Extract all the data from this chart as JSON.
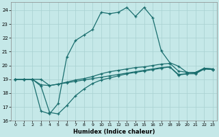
{
  "xlabel": "Humidex (Indice chaleur)",
  "bg_color": "#c5e8e8",
  "grid_color": "#a8d0d0",
  "line_color": "#1a6e6e",
  "xlim": [
    -0.5,
    23.5
  ],
  "ylim": [
    16,
    24.6
  ],
  "yticks": [
    16,
    17,
    18,
    19,
    20,
    21,
    22,
    23,
    24
  ],
  "xticks": [
    0,
    1,
    2,
    3,
    4,
    5,
    6,
    7,
    8,
    9,
    10,
    11,
    12,
    13,
    14,
    15,
    16,
    17,
    18,
    19,
    20,
    21,
    22,
    23
  ],
  "line1_x": [
    0,
    1,
    2,
    3,
    4,
    5,
    6,
    7,
    8,
    9,
    10,
    11,
    12,
    13,
    14,
    15,
    16,
    17,
    18,
    19,
    20,
    21,
    22,
    23
  ],
  "line1_y": [
    19.0,
    19.0,
    19.0,
    18.6,
    18.55,
    18.65,
    18.75,
    18.85,
    18.95,
    19.05,
    19.15,
    19.25,
    19.35,
    19.45,
    19.55,
    19.65,
    19.75,
    19.85,
    19.9,
    19.35,
    19.4,
    19.45,
    19.75,
    19.7
  ],
  "line2_x": [
    0,
    1,
    2,
    3,
    4,
    5,
    6,
    7,
    8,
    9,
    10,
    11,
    12,
    13,
    14,
    15,
    16,
    17,
    18,
    19,
    20,
    21,
    22,
    23
  ],
  "line2_y": [
    19.0,
    19.0,
    19.0,
    19.0,
    18.55,
    18.65,
    18.8,
    18.95,
    19.05,
    19.2,
    19.4,
    19.55,
    19.65,
    19.75,
    19.85,
    19.9,
    20.0,
    20.1,
    20.15,
    19.6,
    19.5,
    19.5,
    19.8,
    19.75
  ],
  "line3_x": [
    0,
    1,
    2,
    3,
    4,
    5,
    6,
    7,
    8,
    9,
    10,
    11,
    12,
    13,
    14,
    15,
    16,
    17,
    18,
    19,
    20,
    21,
    22,
    23
  ],
  "line3_y": [
    19.0,
    19.0,
    19.0,
    16.7,
    16.5,
    17.25,
    20.6,
    21.8,
    22.2,
    22.6,
    23.85,
    23.75,
    23.85,
    24.2,
    23.55,
    24.2,
    23.45,
    21.05,
    20.2,
    19.95,
    19.5,
    19.5,
    19.8,
    19.75
  ],
  "line4_x": [
    0,
    1,
    2,
    3,
    4,
    5,
    6,
    7,
    8,
    9,
    10,
    11,
    12,
    13,
    14,
    15,
    16,
    17,
    18,
    19,
    20,
    21,
    22,
    23
  ],
  "line4_y": [
    19.0,
    19.0,
    19.0,
    18.5,
    16.6,
    16.5,
    17.1,
    17.8,
    18.3,
    18.7,
    18.95,
    19.1,
    19.25,
    19.4,
    19.5,
    19.6,
    19.7,
    19.8,
    19.9,
    19.3,
    19.4,
    19.4,
    19.75,
    19.7
  ]
}
